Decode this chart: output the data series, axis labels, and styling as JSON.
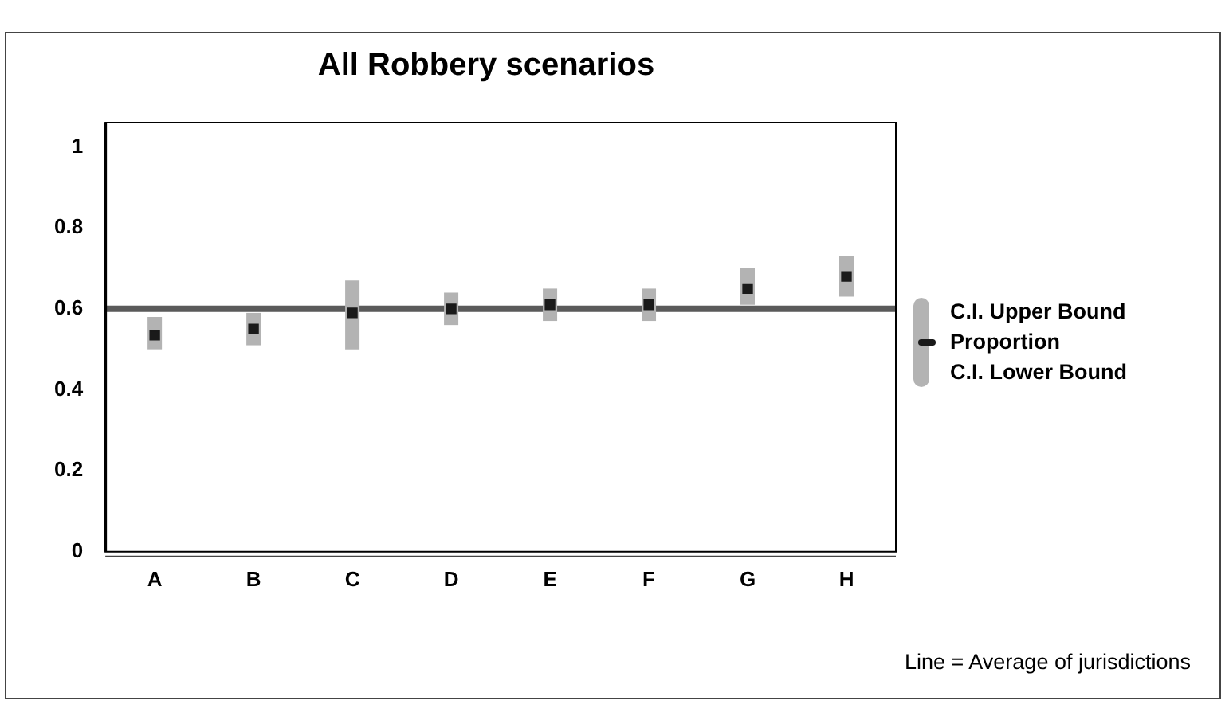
{
  "chart_data": {
    "type": "scatter",
    "title": "All Robbery scenarios",
    "categories": [
      "A",
      "B",
      "C",
      "D",
      "E",
      "F",
      "G",
      "H"
    ],
    "series": [
      {
        "name": "Proportion",
        "color": "#1a1a1a",
        "values": [
          0.535,
          0.55,
          0.59,
          0.6,
          0.61,
          0.61,
          0.65,
          0.68
        ],
        "errors": [
          [
            0.5,
            0.58
          ],
          [
            0.51,
            0.59
          ],
          [
            0.5,
            0.67
          ],
          [
            0.56,
            0.64
          ],
          [
            0.57,
            0.65
          ],
          [
            0.57,
            0.65
          ],
          [
            0.61,
            0.7
          ],
          [
            0.63,
            0.73
          ]
        ]
      }
    ],
    "ylim": [
      0,
      1.06
    ],
    "yticks": [
      0,
      0.2,
      0.4,
      0.6,
      0.8,
      1
    ],
    "grid": false,
    "legend": "right",
    "ref_lines": [
      {
        "axis": "y",
        "value": 0.6,
        "color": "#5a5a5a"
      }
    ],
    "annotations": [
      "C.I. Upper Bound",
      "C.I. Lower Bound",
      "Line = Average of jurisdictions"
    ]
  }
}
